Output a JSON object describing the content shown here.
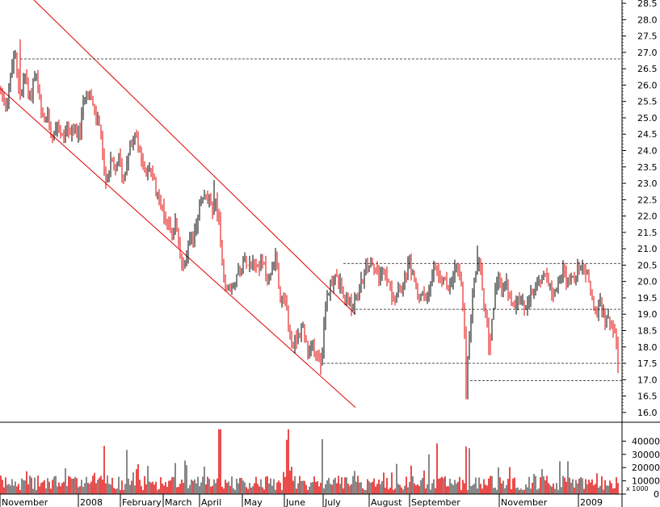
{
  "chart_data": [
    {
      "type": "candlestick",
      "panel": "price",
      "title": "",
      "xlabel": "",
      "ylabel": "",
      "ylim": [
        15.7,
        28.6
      ],
      "y_ticks": [
        16.0,
        16.5,
        17.0,
        17.5,
        18.0,
        18.5,
        19.0,
        19.5,
        20.0,
        20.5,
        21.0,
        21.5,
        22.0,
        22.5,
        23.0,
        23.5,
        24.0,
        24.5,
        25.0,
        25.5,
        26.0,
        26.5,
        27.0,
        27.5,
        28.0,
        28.5
      ],
      "grid": false,
      "x_months": [
        "November",
        "2008",
        "February",
        "March",
        "April",
        "May",
        "June",
        "July",
        "August",
        "September",
        "November",
        "2009"
      ],
      "anchors": [
        [
          0,
          25.9
        ],
        [
          6,
          25.4
        ],
        [
          10,
          25.7
        ],
        [
          14,
          26.4
        ],
        [
          18,
          27.0
        ],
        [
          22,
          26.1
        ],
        [
          26,
          25.7
        ],
        [
          30,
          26.3
        ],
        [
          34,
          26.0
        ],
        [
          38,
          25.6
        ],
        [
          42,
          26.3
        ],
        [
          46,
          26.1
        ],
        [
          50,
          25.2
        ],
        [
          54,
          24.8
        ],
        [
          58,
          25.1
        ],
        [
          62,
          24.7
        ],
        [
          66,
          24.5
        ],
        [
          70,
          24.9
        ],
        [
          74,
          24.6
        ],
        [
          78,
          24.3
        ],
        [
          82,
          24.8
        ],
        [
          86,
          24.6
        ],
        [
          90,
          24.4
        ],
        [
          94,
          24.7
        ],
        [
          98,
          24.4
        ],
        [
          102,
          25.2
        ],
        [
          106,
          25.9
        ],
        [
          110,
          25.9
        ],
        [
          114,
          25.4
        ],
        [
          118,
          24.9
        ],
        [
          122,
          25.1
        ],
        [
          126,
          24.2
        ],
        [
          130,
          22.9
        ],
        [
          134,
          23.3
        ],
        [
          138,
          23.7
        ],
        [
          142,
          23.2
        ],
        [
          146,
          23.9
        ],
        [
          150,
          23.4
        ],
        [
          154,
          23.1
        ],
        [
          158,
          24.0
        ],
        [
          162,
          24.1
        ],
        [
          166,
          24.6
        ],
        [
          170,
          24.3
        ],
        [
          174,
          23.8
        ],
        [
          178,
          23.5
        ],
        [
          182,
          23.3
        ],
        [
          186,
          23.6
        ],
        [
          190,
          23.0
        ],
        [
          194,
          22.8
        ],
        [
          198,
          22.5
        ],
        [
          202,
          22.1
        ],
        [
          206,
          21.9
        ],
        [
          210,
          21.7
        ],
        [
          214,
          21.4
        ],
        [
          218,
          21.9
        ],
        [
          222,
          20.8
        ],
        [
          226,
          20.6
        ],
        [
          230,
          20.8
        ],
        [
          234,
          21.2
        ],
        [
          238,
          21.2
        ],
        [
          242,
          21.7
        ],
        [
          246,
          22.1
        ],
        [
          250,
          22.6
        ],
        [
          254,
          22.5
        ],
        [
          258,
          22.4
        ],
        [
          262,
          22.2
        ],
        [
          266,
          22.4
        ],
        [
          270,
          22.1
        ],
        [
          274,
          20.9
        ],
        [
          278,
          19.8
        ],
        [
          282,
          19.9
        ],
        [
          286,
          19.7
        ],
        [
          290,
          20.0
        ],
        [
          294,
          20.2
        ],
        [
          298,
          20.5
        ],
        [
          302,
          20.6
        ],
        [
          306,
          20.7
        ],
        [
          310,
          20.6
        ],
        [
          314,
          20.8
        ],
        [
          318,
          20.4
        ],
        [
          322,
          20.6
        ],
        [
          326,
          20.5
        ],
        [
          330,
          20.2
        ],
        [
          334,
          20.1
        ],
        [
          338,
          20.5
        ],
        [
          342,
          20.8
        ],
        [
          346,
          19.6
        ],
        [
          350,
          19.3
        ],
        [
          354,
          19.2
        ],
        [
          358,
          18.5
        ],
        [
          362,
          18.0
        ],
        [
          366,
          18.3
        ],
        [
          370,
          18.4
        ],
        [
          374,
          18.6
        ],
        [
          378,
          18.3
        ],
        [
          382,
          17.6
        ],
        [
          386,
          18.0
        ],
        [
          390,
          17.9
        ],
        [
          394,
          17.8
        ],
        [
          398,
          17.6
        ],
        [
          402,
          18.9
        ],
        [
          406,
          19.7
        ],
        [
          410,
          20.0
        ],
        [
          414,
          20.2
        ],
        [
          418,
          20.0
        ],
        [
          422,
          19.8
        ],
        [
          426,
          19.3
        ],
        [
          430,
          19.6
        ],
        [
          434,
          19.1
        ],
        [
          438,
          19.4
        ],
        [
          442,
          19.5
        ],
        [
          446,
          19.8
        ],
        [
          450,
          20.2
        ],
        [
          454,
          20.4
        ],
        [
          458,
          20.6
        ],
        [
          462,
          20.4
        ],
        [
          466,
          20.3
        ],
        [
          470,
          20.0
        ],
        [
          474,
          20.4
        ],
        [
          478,
          20.1
        ],
        [
          482,
          19.8
        ],
        [
          486,
          19.6
        ],
        [
          490,
          19.5
        ],
        [
          494,
          20.0
        ],
        [
          498,
          19.8
        ],
        [
          502,
          20.2
        ],
        [
          506,
          20.5
        ],
        [
          510,
          20.3
        ],
        [
          514,
          20.0
        ],
        [
          518,
          19.5
        ],
        [
          522,
          19.4
        ],
        [
          526,
          19.6
        ],
        [
          530,
          19.5
        ],
        [
          534,
          20.0
        ],
        [
          538,
          20.4
        ],
        [
          542,
          20.2
        ],
        [
          546,
          20.2
        ],
        [
          550,
          20.0
        ],
        [
          554,
          19.9
        ],
        [
          558,
          19.8
        ],
        [
          562,
          20.2
        ],
        [
          566,
          20.5
        ],
        [
          570,
          20.1
        ],
        [
          574,
          19.0
        ],
        [
          578,
          17.1
        ],
        [
          582,
          18.8
        ],
        [
          586,
          19.8
        ],
        [
          590,
          20.6
        ],
        [
          594,
          20.5
        ],
        [
          598,
          19.6
        ],
        [
          602,
          19.0
        ],
        [
          606,
          18.0
        ],
        [
          610,
          19.1
        ],
        [
          614,
          19.8
        ],
        [
          618,
          20.1
        ],
        [
          622,
          19.7
        ],
        [
          626,
          20.0
        ],
        [
          630,
          19.6
        ],
        [
          634,
          19.4
        ],
        [
          638,
          19.3
        ],
        [
          642,
          19.5
        ],
        [
          646,
          19.3
        ],
        [
          650,
          19.2
        ],
        [
          654,
          19.3
        ],
        [
          658,
          19.6
        ],
        [
          662,
          19.9
        ],
        [
          666,
          20.0
        ],
        [
          670,
          19.8
        ],
        [
          674,
          20.3
        ],
        [
          678,
          20.1
        ],
        [
          682,
          19.8
        ],
        [
          686,
          19.6
        ],
        [
          690,
          19.9
        ],
        [
          694,
          20.2
        ],
        [
          698,
          20.4
        ],
        [
          702,
          20.0
        ],
        [
          706,
          20.2
        ],
        [
          710,
          20.0
        ],
        [
          714,
          20.3
        ],
        [
          718,
          20.6
        ],
        [
          722,
          20.5
        ],
        [
          726,
          20.2
        ],
        [
          730,
          19.9
        ],
        [
          734,
          19.3
        ],
        [
          738,
          19.0
        ],
        [
          742,
          19.3
        ],
        [
          746,
          19.1
        ],
        [
          750,
          18.8
        ],
        [
          754,
          18.8
        ],
        [
          758,
          18.6
        ],
        [
          762,
          18.2
        ],
        [
          766,
          17.7
        ]
      ],
      "overlays": [
        {
          "kind": "channel-line",
          "color": "#e00000",
          "from": [
            42,
            0.0
          ],
          "to": [
            440,
            19.0
          ]
        },
        {
          "kind": "channel-line",
          "color": "#e00000",
          "from": [
            0,
            25.9
          ],
          "to": [
            440,
            16.15
          ]
        },
        {
          "kind": "level",
          "color": "#555555",
          "value": 26.8,
          "from_x": 25,
          "to_x": 770
        },
        {
          "kind": "level",
          "color": "#555555",
          "value": 20.55,
          "from_x": 425,
          "to_x": 770
        },
        {
          "kind": "level",
          "color": "#555555",
          "value": 19.15,
          "from_x": 440,
          "to_x": 770
        },
        {
          "kind": "level",
          "color": "#555555",
          "value": 17.5,
          "from_x": 400,
          "to_x": 770
        },
        {
          "kind": "level",
          "color": "#555555",
          "value": 16.97,
          "from_x": 582,
          "to_x": 770
        }
      ],
      "colors": {
        "up": "#000000",
        "down": "#e00000"
      }
    },
    {
      "type": "bar",
      "panel": "volume",
      "ylabel": "",
      "unit_label": "x 1000",
      "ylim": [
        0,
        50000
      ],
      "y_ticks": [
        0,
        10000,
        20000,
        30000,
        40000
      ],
      "colors": {
        "up": "#555555",
        "down": "#e00000"
      }
    }
  ]
}
